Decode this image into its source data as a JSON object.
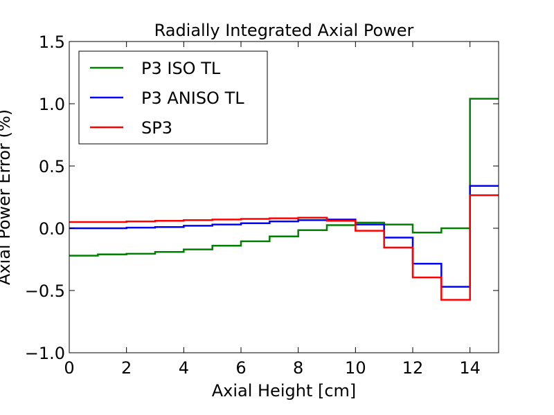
{
  "chart_data": {
    "type": "line",
    "title": "Radially Integrated Axial Power",
    "xlabel": "Axial Height [cm]",
    "ylabel": "Axial Power Error (%)",
    "xlim": [
      0,
      15
    ],
    "ylim": [
      -1.0,
      1.5
    ],
    "x_ticks": [
      0,
      2,
      4,
      6,
      8,
      10,
      12,
      14
    ],
    "x_tick_labels": [
      "0",
      "2",
      "4",
      "6",
      "8",
      "10",
      "12",
      "14"
    ],
    "y_ticks": [
      -1.0,
      -0.5,
      0.0,
      0.5,
      1.0,
      1.5
    ],
    "y_tick_labels": [
      "−1.0",
      "−0.5",
      "0.0",
      "0.5",
      "1.0",
      "1.5"
    ],
    "step_edges": [
      0,
      1,
      2,
      3,
      4,
      5,
      6,
      7,
      8,
      9,
      10,
      11,
      12,
      13,
      14,
      15
    ],
    "grid": false,
    "legend_position": "upper-left",
    "series": [
      {
        "name": "P3 ISO TL",
        "color": "#008000",
        "values": [
          -0.22,
          -0.21,
          -0.205,
          -0.19,
          -0.17,
          -0.14,
          -0.105,
          -0.065,
          -0.015,
          0.025,
          0.045,
          0.03,
          -0.035,
          0.0,
          1.04
        ]
      },
      {
        "name": "P3 ANISO TL",
        "color": "#0000ff",
        "values": [
          0.0,
          0.0,
          0.005,
          0.01,
          0.02,
          0.03,
          0.04,
          0.055,
          0.065,
          0.07,
          0.03,
          -0.075,
          -0.285,
          -0.47,
          0.34
        ]
      },
      {
        "name": "SP3",
        "color": "#ff0000",
        "values": [
          0.05,
          0.05,
          0.055,
          0.06,
          0.065,
          0.07,
          0.075,
          0.08,
          0.085,
          0.06,
          -0.02,
          -0.155,
          -0.395,
          -0.575,
          0.265
        ]
      }
    ]
  }
}
